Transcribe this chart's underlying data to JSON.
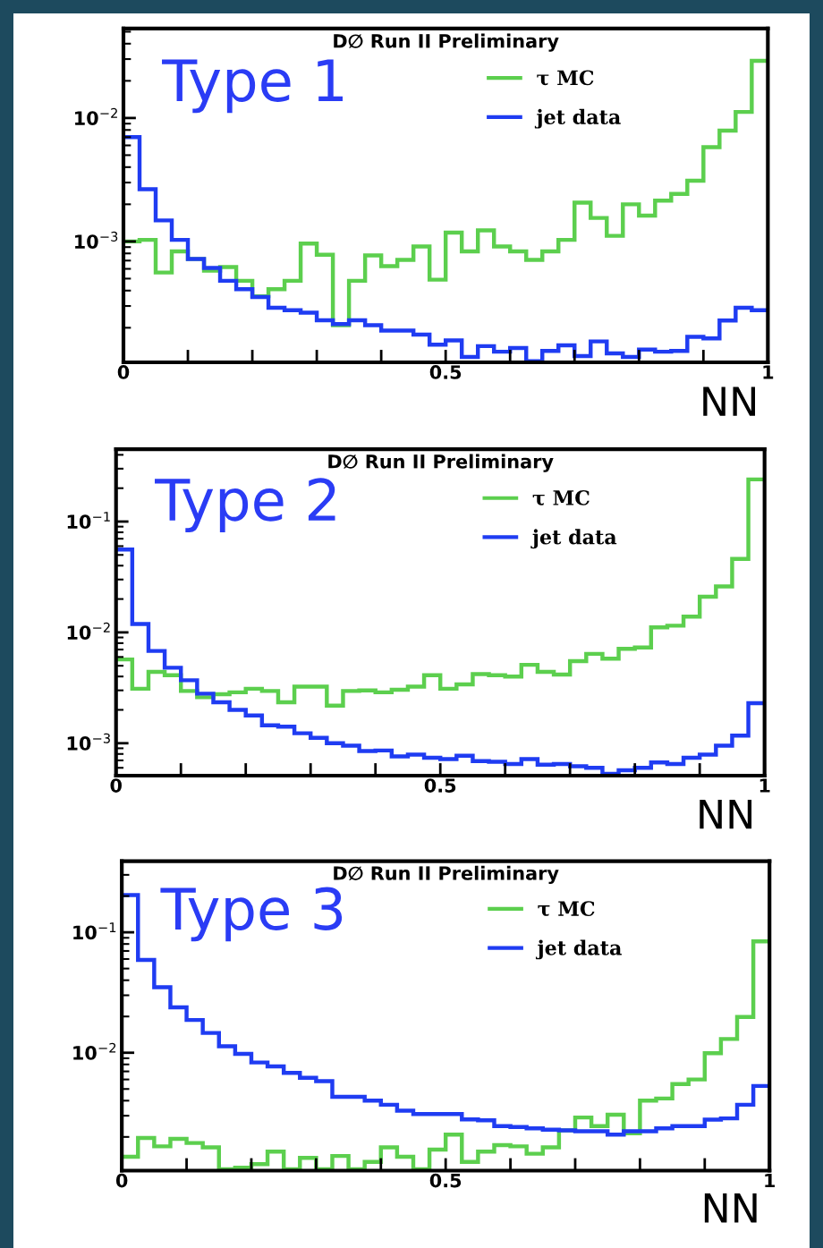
{
  "chart_data": [
    {
      "type": "histogram",
      "title": "D∅ Run II Preliminary",
      "annotations": [
        "Type 1"
      ],
      "xlabel": "NN",
      "log": "y",
      "legend": "top right",
      "grid": false,
      "bins": [
        0,
        0.025,
        0.05,
        0.075,
        0.1,
        0.125,
        0.15,
        0.175,
        0.2,
        0.225,
        0.25,
        0.275,
        0.3,
        0.325,
        0.35,
        0.375,
        0.4,
        0.425,
        0.45,
        0.475,
        0.5,
        0.525,
        0.55,
        0.575,
        0.6,
        0.625,
        0.65,
        0.675,
        0.7,
        0.725,
        0.75,
        0.775,
        0.8,
        0.825,
        0.85,
        0.875,
        0.9,
        0.925,
        0.95,
        0.975,
        1
      ],
      "xlim": [
        0,
        1
      ],
      "xticks": [
        0,
        {
          "value": 0.1,
          "label": null
        },
        {
          "value": 0.2,
          "label": null
        },
        {
          "value": 0.3,
          "label": null
        },
        {
          "value": 0.4,
          "label": null
        },
        0.5,
        {
          "value": 0.6,
          "label": null
        },
        {
          "value": 0.7,
          "label": null
        },
        {
          "value": 0.8,
          "label": null
        },
        {
          "value": 0.9,
          "label": null
        },
        1
      ],
      "ylim": [
        0.000105,
        0.053
      ],
      "yticks": [
        {
          "value": 0.001,
          "label": "10$^{−3}$"
        },
        {
          "value": 0.01,
          "label": "10$^{−2}$"
        }
      ],
      "series": [
        {
          "name": "τ MC",
          "color": "#5ccf4e",
          "values": [
            0.001,
            0.00103,
            0.00056,
            0.00083,
            0.00072,
            0.00058,
            0.00062,
            0.00048,
            0.00036,
            0.00041,
            0.00048,
            0.00096,
            0.00078,
            0.00021,
            0.00048,
            0.00077,
            0.00063,
            0.00071,
            0.00091,
            0.00049,
            0.00118,
            0.00083,
            0.00123,
            0.00091,
            0.00083,
            0.00071,
            0.00083,
            0.00103,
            0.00206,
            0.00155,
            0.00111,
            0.002,
            0.00162,
            0.00214,
            0.00243,
            0.0031,
            0.0058,
            0.0079,
            0.0112,
            0.029
          ]
        },
        {
          "name": "jet data",
          "color": "#1f3cf2",
          "values": [
            0.007,
            0.00265,
            0.00148,
            0.00103,
            0.00072,
            0.00061,
            0.00048,
            0.00041,
            0.000355,
            0.00029,
            0.000277,
            0.000265,
            0.00023,
            0.000214,
            0.00023,
            0.00021,
            0.00019,
            0.00019,
            0.000176,
            0.000146,
            0.000158,
            0.000116,
            0.000142,
            0.000128,
            0.000137,
            0.000107,
            0.00013,
            0.000144,
            0.000118,
            0.000155,
            0.000124,
            0.000116,
            0.000133,
            0.000128,
            0.00013,
            0.000169,
            0.000164,
            0.000229,
            0.00029,
            0.000277
          ]
        }
      ]
    },
    {
      "type": "histogram",
      "title": "D∅ Run II Preliminary",
      "annotations": [
        "Type 2"
      ],
      "xlabel": "NN",
      "log": "y",
      "legend": "top right",
      "grid": false,
      "bins": [
        0,
        0.025,
        0.05,
        0.075,
        0.1,
        0.125,
        0.15,
        0.175,
        0.2,
        0.225,
        0.25,
        0.275,
        0.3,
        0.325,
        0.35,
        0.375,
        0.4,
        0.425,
        0.45,
        0.475,
        0.5,
        0.525,
        0.55,
        0.575,
        0.6,
        0.625,
        0.65,
        0.675,
        0.7,
        0.725,
        0.75,
        0.775,
        0.8,
        0.825,
        0.85,
        0.875,
        0.9,
        0.925,
        0.95,
        0.975,
        1
      ],
      "xlim": [
        0,
        1
      ],
      "xticks": [
        0,
        {
          "value": 0.1,
          "label": null
        },
        {
          "value": 0.2,
          "label": null
        },
        {
          "value": 0.3,
          "label": null
        },
        {
          "value": 0.4,
          "label": null
        },
        0.5,
        {
          "value": 0.6,
          "label": null
        },
        {
          "value": 0.7,
          "label": null
        },
        {
          "value": 0.8,
          "label": null
        },
        {
          "value": 0.9,
          "label": null
        },
        1
      ],
      "ylim": [
        0.00051,
        0.45
      ],
      "yticks": [
        {
          "value": 0.001,
          "label": "10$^{−3}$"
        },
        {
          "value": 0.01,
          "label": "10$^{−2}$"
        },
        {
          "value": 0.1,
          "label": "10$^{−1}$"
        }
      ],
      "series": [
        {
          "name": "τ MC",
          "color": "#5ccf4e",
          "values": [
            0.0057,
            0.0031,
            0.0044,
            0.0041,
            0.00296,
            0.0026,
            0.00277,
            0.00288,
            0.0031,
            0.00296,
            0.00234,
            0.00324,
            0.00324,
            0.00218,
            0.00296,
            0.003,
            0.00288,
            0.00304,
            0.00324,
            0.0041,
            0.0031,
            0.0034,
            0.0042,
            0.0041,
            0.004,
            0.0051,
            0.0044,
            0.00417,
            0.0055,
            0.0064,
            0.0058,
            0.0071,
            0.0073,
            0.0111,
            0.0115,
            0.0139,
            0.021,
            0.026,
            0.046,
            0.24
          ]
        },
        {
          "name": "jet data",
          "color": "#1f3cf2",
          "values": [
            0.056,
            0.0119,
            0.0068,
            0.0048,
            0.0037,
            0.0028,
            0.00234,
            0.002,
            0.00178,
            0.00145,
            0.00141,
            0.00123,
            0.00112,
            0.001,
            0.00095,
            0.00085,
            0.00086,
            0.00076,
            0.00079,
            0.00074,
            0.00072,
            0.00077,
            0.00069,
            0.00068,
            0.00065,
            0.00072,
            0.00064,
            0.00065,
            0.00062,
            0.0006,
            0.00053,
            0.00057,
            0.0006,
            0.00067,
            0.00065,
            0.00074,
            0.00079,
            0.00095,
            0.00117,
            0.0023
          ]
        }
      ]
    },
    {
      "type": "histogram",
      "title": "D∅ Run II Preliminary",
      "annotations": [
        "Type 3"
      ],
      "xlabel": "NN",
      "log": "y",
      "legend": "top right",
      "grid": false,
      "bins": [
        0,
        0.025,
        0.05,
        0.075,
        0.1,
        0.125,
        0.15,
        0.175,
        0.2,
        0.225,
        0.25,
        0.275,
        0.3,
        0.325,
        0.35,
        0.375,
        0.4,
        0.425,
        0.45,
        0.475,
        0.5,
        0.525,
        0.55,
        0.575,
        0.6,
        0.625,
        0.65,
        0.675,
        0.7,
        0.725,
        0.75,
        0.775,
        0.8,
        0.825,
        0.85,
        0.875,
        0.9,
        0.925,
        0.95,
        0.975,
        1
      ],
      "xlim": [
        0,
        1
      ],
      "xticks": [
        0,
        {
          "value": 0.1,
          "label": null
        },
        {
          "value": 0.2,
          "label": null
        },
        {
          "value": 0.3,
          "label": null
        },
        {
          "value": 0.4,
          "label": null
        },
        0.5,
        {
          "value": 0.6,
          "label": null
        },
        {
          "value": 0.7,
          "label": null
        },
        {
          "value": 0.8,
          "label": null
        },
        {
          "value": 0.9,
          "label": null
        },
        1
      ],
      "ylim": [
        0.00105,
        0.39
      ],
      "yticks": [
        {
          "value": 0.01,
          "label": "10$^{−2}$"
        },
        {
          "value": 0.1,
          "label": "10$^{−1}$"
        }
      ],
      "series": [
        {
          "name": "τ MC",
          "color": "#5ccf4e",
          "values": [
            0.00137,
            0.00196,
            0.00167,
            0.00193,
            0.00178,
            0.00164,
            0.00108,
            0.00111,
            0.00119,
            0.00151,
            0.00108,
            0.00134,
            0.00108,
            0.00139,
            0.00108,
            0.00124,
            0.00164,
            0.00137,
            0.00108,
            0.00157,
            0.00209,
            0.00124,
            0.00151,
            0.00171,
            0.00167,
            0.00145,
            0.00164,
            0.00227,
            0.0029,
            0.00246,
            0.00306,
            0.00214,
            0.004,
            0.00417,
            0.0055,
            0.006,
            0.0099,
            0.013,
            0.0198,
            0.084
          ]
        },
        {
          "name": "jet data",
          "color": "#1f3cf2",
          "values": [
            0.204,
            0.059,
            0.035,
            0.0238,
            0.0187,
            0.0146,
            0.0113,
            0.0098,
            0.0083,
            0.0077,
            0.0068,
            0.0062,
            0.0058,
            0.0043,
            0.0043,
            0.004,
            0.0037,
            0.0033,
            0.0031,
            0.0031,
            0.0031,
            0.0028,
            0.00275,
            0.00246,
            0.00242,
            0.00236,
            0.0023,
            0.00227,
            0.00223,
            0.00223,
            0.00209,
            0.00223,
            0.00223,
            0.00236,
            0.00246,
            0.00246,
            0.00278,
            0.00285,
            0.0037,
            0.0053
          ]
        }
      ]
    }
  ]
}
